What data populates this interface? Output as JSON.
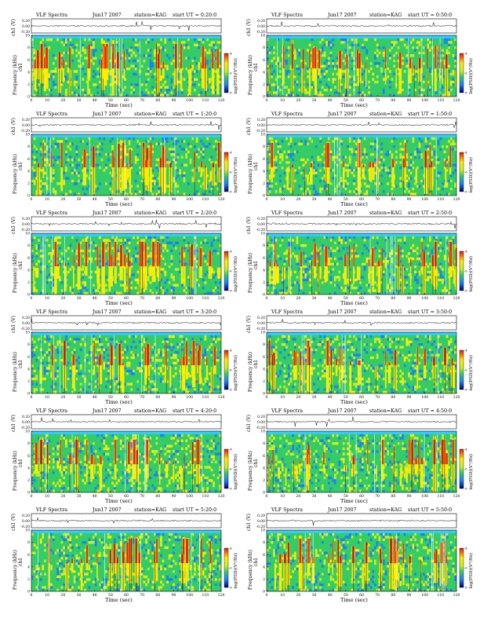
{
  "figure": {
    "title_prefix": "VLF Spectra",
    "date": "Jun17 2007",
    "station": "station=KAG",
    "start_prefix": "start UT =",
    "channel_axis_label": "ch1 (V)",
    "channel_tick_labels": [
      "0.20",
      "0.00",
      "-0.20"
    ],
    "frequency_axis_label": "Frequency (kHz)",
    "spectrogram_channel_label": "ch1",
    "colorbar_label": "log(PSD)(V²/Hz)",
    "colorbar_tick_labels": [
      "-4",
      "-6",
      "-8"
    ],
    "x_axis_label": "Time (sec)",
    "x_tick_labels": [
      "0",
      "10",
      "20",
      "30",
      "40",
      "50",
      "60",
      "70",
      "80",
      "90",
      "100",
      "110",
      "120"
    ],
    "y_tick_labels": [
      "0",
      "2",
      "4",
      "6",
      "8",
      "10"
    ]
  },
  "chart_data": [
    {
      "type": "heatmap",
      "title": "VLF Spectra",
      "start_ut": "0:20:0",
      "xlabel": "Time (sec)",
      "ylabel": "Frequency (kHz)",
      "xlim": [
        0,
        120
      ],
      "ylim": [
        0,
        10
      ],
      "upper_cutoff_khz": 9.5,
      "colorbar": "log(PSD)(V²/Hz)",
      "seed": 11,
      "intensity": 0.72
    },
    {
      "type": "heatmap",
      "title": "VLF Spectra",
      "start_ut": "0:50:0",
      "xlabel": "Time (sec)",
      "ylabel": "Frequency (kHz)",
      "xlim": [
        0,
        120
      ],
      "ylim": [
        0,
        10
      ],
      "upper_cutoff_khz": 9.5,
      "colorbar": "log(PSD)(V²/Hz)",
      "seed": 23,
      "intensity": 0.55
    },
    {
      "type": "heatmap",
      "title": "VLF Spectra",
      "start_ut": "1:20:0",
      "xlabel": "Time (sec)",
      "ylabel": "Frequency (kHz)",
      "xlim": [
        0,
        120
      ],
      "ylim": [
        0,
        10
      ],
      "upper_cutoff_khz": 9.5,
      "colorbar": "log(PSD)(V²/Hz)",
      "seed": 37,
      "intensity": 0.52
    },
    {
      "type": "heatmap",
      "title": "VLF Spectra",
      "start_ut": "1:50:0",
      "xlabel": "Time (sec)",
      "ylabel": "Frequency (kHz)",
      "xlim": [
        0,
        120
      ],
      "ylim": [
        0,
        10
      ],
      "upper_cutoff_khz": 9.5,
      "colorbar": "log(PSD)(V²/Hz)",
      "seed": 41,
      "intensity": 0.48
    },
    {
      "type": "heatmap",
      "title": "VLF Spectra",
      "start_ut": "2:20:0",
      "xlabel": "Time (sec)",
      "ylabel": "Frequency (kHz)",
      "xlim": [
        0,
        120
      ],
      "ylim": [
        0,
        10
      ],
      "upper_cutoff_khz": 9.5,
      "colorbar": "log(PSD)(V²/Hz)",
      "seed": 53,
      "intensity": 0.78
    },
    {
      "type": "heatmap",
      "title": "VLF Spectra",
      "start_ut": "2:50:0",
      "xlabel": "Time (sec)",
      "ylabel": "Frequency (kHz)",
      "xlim": [
        0,
        120
      ],
      "ylim": [
        0,
        10
      ],
      "upper_cutoff_khz": 9.5,
      "colorbar": "log(PSD)(V²/Hz)",
      "seed": 67,
      "intensity": 0.7
    },
    {
      "type": "heatmap",
      "title": "VLF Spectra",
      "start_ut": "3:20:0",
      "xlabel": "Time (sec)",
      "ylabel": "Frequency (kHz)",
      "xlim": [
        0,
        120
      ],
      "ylim": [
        0,
        10
      ],
      "upper_cutoff_khz": 9.5,
      "colorbar": "log(PSD)(V²/Hz)",
      "seed": 71,
      "intensity": 0.5
    },
    {
      "type": "heatmap",
      "title": "VLF Spectra",
      "start_ut": "3:50:0",
      "xlabel": "Time (sec)",
      "ylabel": "Frequency (kHz)",
      "xlim": [
        0,
        120
      ],
      "ylim": [
        0,
        10
      ],
      "upper_cutoff_khz": 9.5,
      "colorbar": "log(PSD)(V²/Hz)",
      "seed": 83,
      "intensity": 0.58
    },
    {
      "type": "heatmap",
      "title": "VLF Spectra",
      "start_ut": "4:20:0",
      "xlabel": "Time (sec)",
      "ylabel": "Frequency (kHz)",
      "xlim": [
        0,
        120
      ],
      "ylim": [
        0,
        10
      ],
      "upper_cutoff_khz": 9.5,
      "colorbar": "log(PSD)(V²/Hz)",
      "seed": 97,
      "intensity": 0.5
    },
    {
      "type": "heatmap",
      "title": "VLF Spectra",
      "start_ut": "4:50:0",
      "xlabel": "Time (sec)",
      "ylabel": "Frequency (kHz)",
      "xlim": [
        0,
        120
      ],
      "ylim": [
        0,
        10
      ],
      "upper_cutoff_khz": 9.5,
      "colorbar": "log(PSD)(V²/Hz)",
      "seed": 101,
      "intensity": 0.68
    },
    {
      "type": "heatmap",
      "title": "VLF Spectra",
      "start_ut": "5:20:0",
      "xlabel": "Time (sec)",
      "ylabel": "Frequency (kHz)",
      "xlim": [
        0,
        120
      ],
      "ylim": [
        0,
        10
      ],
      "upper_cutoff_khz": 9.5,
      "colorbar": "log(PSD)(V²/Hz)",
      "seed": 113,
      "intensity": 0.55
    },
    {
      "type": "heatmap",
      "title": "VLF Spectra",
      "start_ut": "5:50:0",
      "xlabel": "Time (sec)",
      "ylabel": "Frequency (kHz)",
      "xlim": [
        0,
        120
      ],
      "ylim": [
        0,
        10
      ],
      "upper_cutoff_khz": 9.5,
      "colorbar": "log(PSD)(V²/Hz)",
      "seed": 127,
      "intensity": 0.62
    }
  ],
  "colors": {
    "background_cutoff": "#33ccff",
    "low": "#1a7fff",
    "mid": "#33cc66",
    "mid_high": "#ccee22",
    "high": "#ffee00",
    "peak": "#ee1111",
    "dark": "#552233"
  }
}
